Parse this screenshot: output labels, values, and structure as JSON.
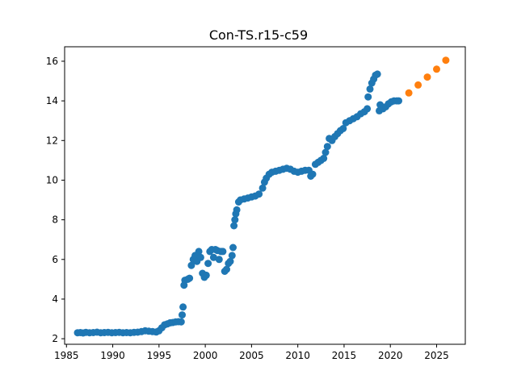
{
  "chart_data": {
    "type": "scatter",
    "title": "Con-TS.r15-c59",
    "xlabel": "",
    "ylabel": "",
    "xlim": [
      1984.8,
      2028.1
    ],
    "ylim": [
      1.72,
      16.73
    ],
    "xticks": [
      1985,
      1990,
      1995,
      2000,
      2005,
      2010,
      2015,
      2020,
      2025
    ],
    "yticks": [
      2,
      4,
      6,
      8,
      10,
      12,
      14,
      16
    ],
    "grid": false,
    "colors": [
      "#1f77b4",
      "#ff7f0e"
    ],
    "series": [
      {
        "points": [
          [
            1986.2,
            2.3
          ],
          [
            1986.5,
            2.31
          ],
          [
            1986.8,
            2.29
          ],
          [
            1987.1,
            2.32
          ],
          [
            1987.5,
            2.3
          ],
          [
            1987.9,
            2.31
          ],
          [
            1988.3,
            2.33
          ],
          [
            1988.7,
            2.3
          ],
          [
            1989.1,
            2.31
          ],
          [
            1989.5,
            2.32
          ],
          [
            1989.9,
            2.3
          ],
          [
            1990.3,
            2.31
          ],
          [
            1990.7,
            2.32
          ],
          [
            1991.1,
            2.3
          ],
          [
            1991.5,
            2.31
          ],
          [
            1991.9,
            2.3
          ],
          [
            1992.3,
            2.32
          ],
          [
            1992.7,
            2.33
          ],
          [
            1993.1,
            2.36
          ],
          [
            1993.5,
            2.4
          ],
          [
            1993.9,
            2.38
          ],
          [
            1994.3,
            2.36
          ],
          [
            1994.7,
            2.34
          ],
          [
            1995.0,
            2.4
          ],
          [
            1995.3,
            2.55
          ],
          [
            1995.6,
            2.7
          ],
          [
            1995.9,
            2.75
          ],
          [
            1996.2,
            2.8
          ],
          [
            1996.5,
            2.82
          ],
          [
            1996.8,
            2.85
          ],
          [
            1997.1,
            2.86
          ],
          [
            1997.4,
            2.85
          ],
          [
            1997.5,
            3.2
          ],
          [
            1997.6,
            3.6
          ],
          [
            1997.7,
            4.7
          ],
          [
            1997.8,
            4.95
          ],
          [
            1998.1,
            5.0
          ],
          [
            1998.3,
            5.05
          ],
          [
            1998.5,
            5.7
          ],
          [
            1998.7,
            6.0
          ],
          [
            1998.9,
            6.2
          ],
          [
            1999.1,
            5.9
          ],
          [
            1999.3,
            6.4
          ],
          [
            1999.5,
            6.1
          ],
          [
            1999.7,
            5.3
          ],
          [
            1999.9,
            5.1
          ],
          [
            2000.1,
            5.2
          ],
          [
            2000.3,
            5.8
          ],
          [
            2000.5,
            6.4
          ],
          [
            2000.7,
            6.5
          ],
          [
            2000.9,
            6.1
          ],
          [
            2001.1,
            6.5
          ],
          [
            2001.3,
            6.45
          ],
          [
            2001.5,
            6.0
          ],
          [
            2001.7,
            6.4
          ],
          [
            2001.9,
            6.4
          ],
          [
            2002.1,
            5.4
          ],
          [
            2002.3,
            5.5
          ],
          [
            2002.5,
            5.8
          ],
          [
            2002.7,
            5.9
          ],
          [
            2002.9,
            6.2
          ],
          [
            2003.0,
            6.6
          ],
          [
            2003.1,
            7.7
          ],
          [
            2003.2,
            8.0
          ],
          [
            2003.3,
            8.3
          ],
          [
            2003.4,
            8.5
          ],
          [
            2003.6,
            8.9
          ],
          [
            2003.8,
            9.0
          ],
          [
            2004.2,
            9.05
          ],
          [
            2004.6,
            9.1
          ],
          [
            2005.0,
            9.15
          ],
          [
            2005.4,
            9.2
          ],
          [
            2005.8,
            9.3
          ],
          [
            2006.2,
            9.6
          ],
          [
            2006.4,
            9.9
          ],
          [
            2006.6,
            10.1
          ],
          [
            2006.9,
            10.3
          ],
          [
            2007.2,
            10.4
          ],
          [
            2007.6,
            10.45
          ],
          [
            2008.0,
            10.5
          ],
          [
            2008.4,
            10.55
          ],
          [
            2008.8,
            10.6
          ],
          [
            2009.2,
            10.55
          ],
          [
            2009.6,
            10.45
          ],
          [
            2010.0,
            10.4
          ],
          [
            2010.4,
            10.45
          ],
          [
            2010.8,
            10.5
          ],
          [
            2011.2,
            10.5
          ],
          [
            2011.4,
            10.2
          ],
          [
            2011.6,
            10.3
          ],
          [
            2011.9,
            10.8
          ],
          [
            2012.2,
            10.9
          ],
          [
            2012.5,
            11.0
          ],
          [
            2012.8,
            11.1
          ],
          [
            2013.0,
            11.4
          ],
          [
            2013.2,
            11.7
          ],
          [
            2013.4,
            12.1
          ],
          [
            2013.7,
            12.0
          ],
          [
            2014.0,
            12.2
          ],
          [
            2014.3,
            12.35
          ],
          [
            2014.6,
            12.5
          ],
          [
            2014.9,
            12.6
          ],
          [
            2015.2,
            12.9
          ],
          [
            2015.6,
            13.0
          ],
          [
            2016.0,
            13.1
          ],
          [
            2016.4,
            13.2
          ],
          [
            2016.8,
            13.35
          ],
          [
            2017.2,
            13.45
          ],
          [
            2017.5,
            13.6
          ],
          [
            2017.6,
            14.2
          ],
          [
            2017.8,
            14.6
          ],
          [
            2018.0,
            14.9
          ],
          [
            2018.2,
            15.1
          ],
          [
            2018.4,
            15.3
          ],
          [
            2018.6,
            15.35
          ],
          [
            2018.8,
            13.5
          ],
          [
            2018.9,
            13.8
          ],
          [
            2019.2,
            13.6
          ],
          [
            2019.5,
            13.7
          ],
          [
            2019.8,
            13.85
          ],
          [
            2020.1,
            13.95
          ],
          [
            2020.4,
            14.0
          ],
          [
            2020.7,
            14.0
          ],
          [
            2020.9,
            14.0
          ]
        ]
      },
      {
        "points": [
          [
            2022.0,
            14.4
          ],
          [
            2023.0,
            14.8
          ],
          [
            2024.0,
            15.2
          ],
          [
            2025.0,
            15.6
          ],
          [
            2026.0,
            16.05
          ]
        ]
      }
    ]
  }
}
